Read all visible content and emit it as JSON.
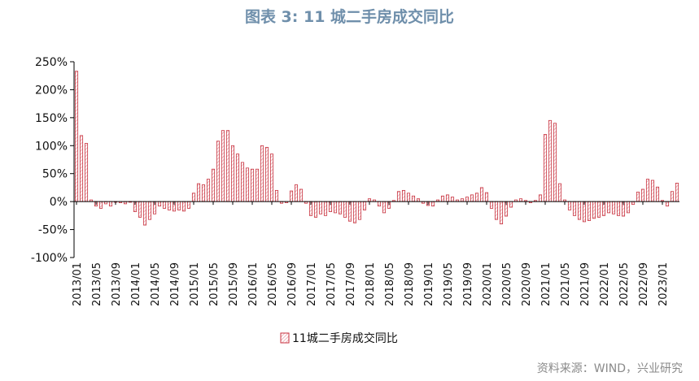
{
  "header": {
    "title": "图表 3:   11 城二手房成交同比"
  },
  "footer": {
    "source": "资料来源：WIND，兴业研究"
  },
  "colors": {
    "bar_stroke": "#c8323f",
    "bar_hatch": "#e8a3aa",
    "title": "#6f8fab",
    "source": "#8a8a8a"
  },
  "chart_data": {
    "type": "bar",
    "title": "",
    "xlabel": "",
    "ylabel": "",
    "ylim": [
      -100,
      250
    ],
    "yticks": [
      -100,
      -50,
      0,
      50,
      100,
      150,
      200,
      250
    ],
    "ytick_labels": [
      "-100%",
      "-50%",
      "0%",
      "50%",
      "100%",
      "150%",
      "200%",
      "250%"
    ],
    "x_tick_labels": [
      "2013/01",
      "2013/05",
      "2013/09",
      "2014/01",
      "2014/05",
      "2014/09",
      "2015/01",
      "2015/05",
      "2015/09",
      "2016/01",
      "2016/05",
      "2016/09",
      "2017/01",
      "2017/05",
      "2017/09",
      "2018/01",
      "2018/05",
      "2018/09",
      "2019/01",
      "2019/05",
      "2019/09",
      "2020/01",
      "2020/05",
      "2020/09",
      "2021/01",
      "2021/05",
      "2021/09",
      "2022/01",
      "2022/05",
      "2022/09",
      "2023/01"
    ],
    "legend": {
      "position": "bottom-center",
      "entries": [
        "11城二手房成交同比"
      ]
    },
    "grid": false,
    "series": [
      {
        "name": "11城二手房成交同比",
        "values": [
          233,
          118,
          104,
          3,
          -8,
          -12,
          -4,
          -8,
          -1,
          -2,
          -4,
          -1,
          -18,
          -28,
          -42,
          -32,
          -22,
          -8,
          -12,
          -15,
          -17,
          -15,
          -17,
          -12,
          15,
          32,
          30,
          40,
          58,
          108,
          127,
          127,
          100,
          85,
          70,
          60,
          58,
          58,
          100,
          97,
          85,
          20,
          -3,
          -2,
          19,
          30,
          22,
          -3,
          -25,
          -28,
          -22,
          -25,
          -18,
          -20,
          -22,
          -28,
          -35,
          -38,
          -32,
          -15,
          5,
          3,
          -8,
          -20,
          -12,
          2,
          18,
          20,
          15,
          10,
          5,
          -3,
          -7,
          -8,
          3,
          10,
          12,
          8,
          3,
          5,
          8,
          12,
          15,
          25,
          16,
          -12,
          -32,
          -40,
          -26,
          -10,
          3,
          5,
          2,
          -2,
          2,
          12,
          120,
          145,
          140,
          32,
          3,
          -15,
          -25,
          -32,
          -36,
          -34,
          -30,
          -28,
          -25,
          -20,
          -22,
          -25,
          -26,
          -20,
          -5,
          17,
          22,
          40,
          38,
          26,
          2,
          -8,
          18,
          33
        ]
      }
    ]
  }
}
